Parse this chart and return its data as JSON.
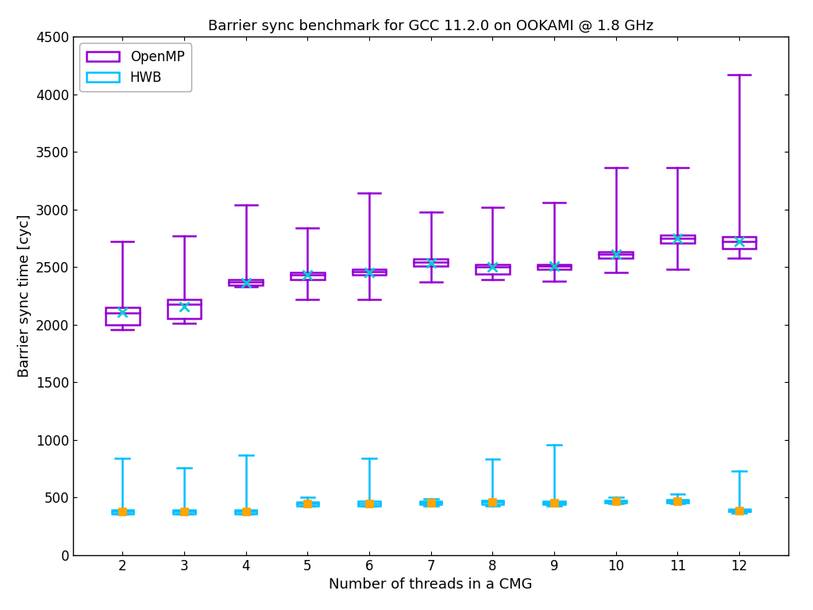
{
  "title": "Barrier sync benchmark for GCC 11.2.0 on OOKAMI @ 1.8 GHz",
  "xlabel": "Number of threads in a CMG",
  "ylabel": "Barrier sync time [cyc]",
  "threads": [
    2,
    3,
    4,
    5,
    6,
    7,
    8,
    9,
    10,
    11,
    12
  ],
  "omp": {
    "color": "#9400D3",
    "mean_color": "#00CED1",
    "mean_marker": "x",
    "q1": [
      2000,
      2050,
      2340,
      2390,
      2430,
      2510,
      2440,
      2480,
      2580,
      2710,
      2660
    ],
    "median": [
      2100,
      2180,
      2370,
      2430,
      2460,
      2540,
      2500,
      2510,
      2610,
      2750,
      2720
    ],
    "q3": [
      2150,
      2220,
      2390,
      2455,
      2480,
      2570,
      2520,
      2520,
      2630,
      2775,
      2760
    ],
    "mean": [
      2110,
      2160,
      2365,
      2430,
      2455,
      2535,
      2500,
      2505,
      2610,
      2750,
      2720
    ],
    "whislo": [
      1960,
      2010,
      2330,
      2220,
      2220,
      2370,
      2390,
      2380,
      2450,
      2480,
      2580
    ],
    "whishi": [
      2720,
      2770,
      3040,
      2840,
      3140,
      2975,
      3020,
      3060,
      3360,
      3360,
      4170
    ],
    "box_width": 0.55
  },
  "hwb": {
    "color": "#00BFFF",
    "mean_color": "#FFA500",
    "mean_marker": "s",
    "q1": [
      360,
      360,
      360,
      430,
      430,
      440,
      440,
      440,
      455,
      455,
      375
    ],
    "median": [
      375,
      375,
      375,
      445,
      450,
      455,
      460,
      455,
      465,
      465,
      385
    ],
    "q3": [
      395,
      395,
      395,
      460,
      470,
      470,
      475,
      470,
      475,
      480,
      400
    ],
    "mean": [
      375,
      375,
      375,
      445,
      450,
      455,
      460,
      455,
      465,
      465,
      385
    ],
    "whislo": [
      355,
      355,
      355,
      425,
      425,
      430,
      430,
      430,
      445,
      445,
      365
    ],
    "whishi": [
      840,
      760,
      870,
      500,
      840,
      490,
      830,
      960,
      500,
      530,
      730
    ],
    "box_width": 0.35
  },
  "ylim": [
    0,
    4500
  ],
  "xlim": [
    1.2,
    12.8
  ],
  "yticks": [
    0,
    500,
    1000,
    1500,
    2000,
    2500,
    3000,
    3500,
    4000,
    4500
  ],
  "xticks": [
    2,
    3,
    4,
    5,
    6,
    7,
    8,
    9,
    10,
    11,
    12
  ]
}
